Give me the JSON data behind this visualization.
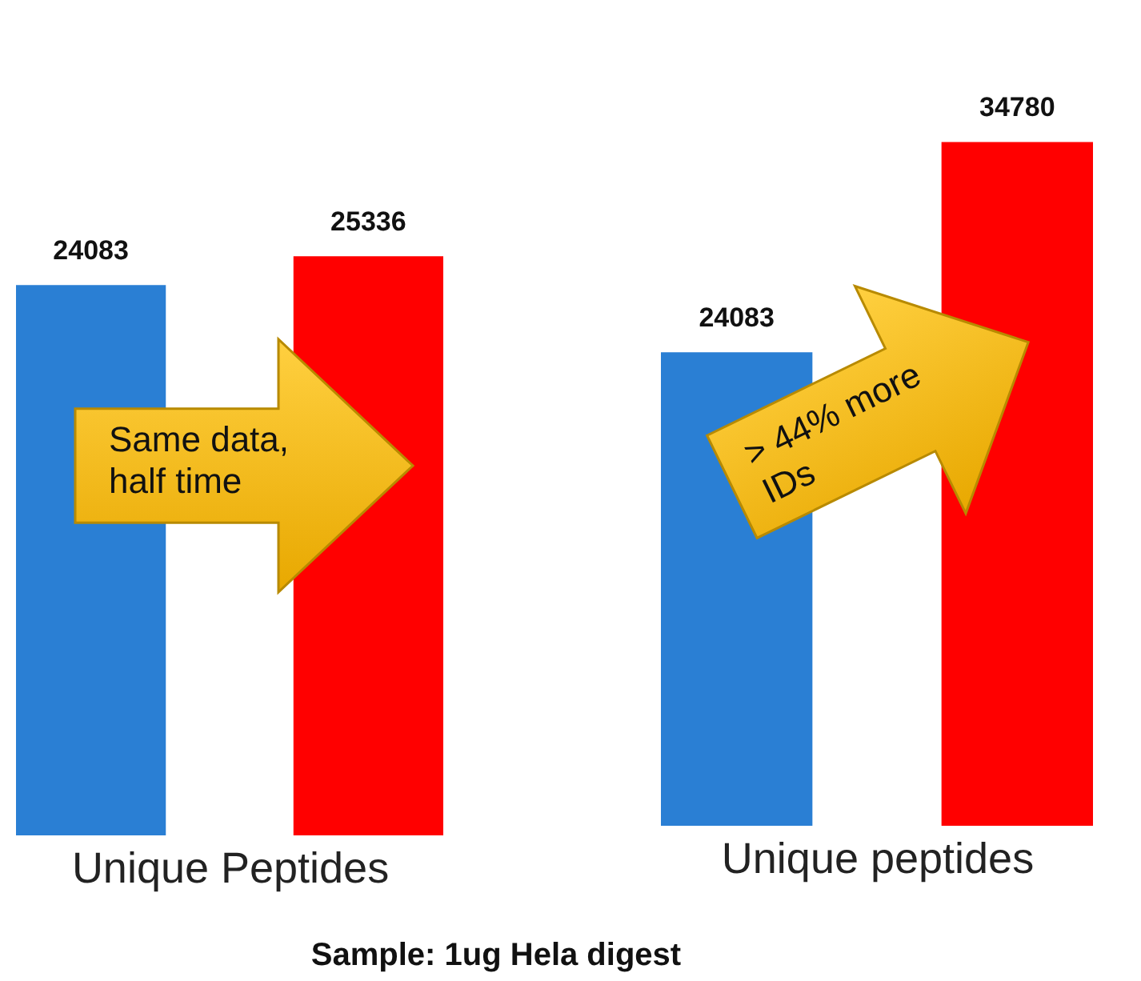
{
  "chart_data": [
    {
      "type": "bar",
      "categories": [
        null,
        null
      ],
      "values": [
        24083,
        25336
      ],
      "colors": [
        "#2a7fd4",
        "#ff0000"
      ],
      "data_labels": true,
      "xlabel": "Unique Peptides",
      "annotations": [
        "Same data, half time",
        "Sample: 1ug Hela digest"
      ]
    },
    {
      "type": "bar",
      "categories": [
        null,
        null
      ],
      "values": [
        24083,
        34780
      ],
      "colors": [
        "#2a7fd4",
        "#ff0000"
      ],
      "data_labels": true,
      "xlabel": "Unique peptides",
      "annotations": [
        "> 44% more IDs"
      ]
    }
  ]
}
